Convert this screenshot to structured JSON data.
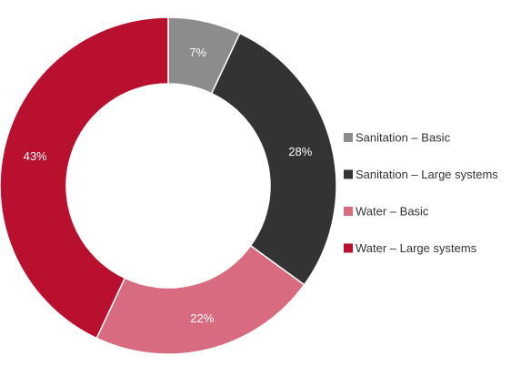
{
  "chart_data": {
    "type": "pie",
    "donut": true,
    "title": "",
    "legend_position": "right",
    "series": [
      {
        "name": "Sanitation – Basic",
        "value": 7,
        "label": "7%",
        "color": "#8c8c8c"
      },
      {
        "name": "Sanitation – Large systems",
        "value": 28,
        "label": "28%",
        "color": "#333333"
      },
      {
        "name": "Water – Basic",
        "value": 22,
        "label": "22%",
        "color": "#d96b80"
      },
      {
        "name": "Water – Large systems",
        "value": 43,
        "label": "43%",
        "color": "#b8102e"
      }
    ]
  }
}
